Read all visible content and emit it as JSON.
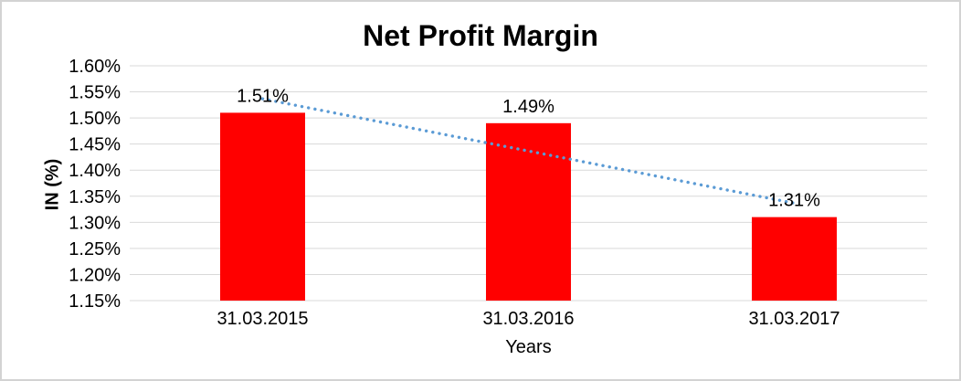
{
  "frame": {
    "background": "#ffffff",
    "border_color": "#d3d3d3"
  },
  "chart_data": {
    "type": "bar",
    "title": "Net Profit Margin",
    "xlabel": "Years",
    "ylabel": "IN (%)",
    "categories": [
      "31.03.2015",
      "31.03.2016",
      "31.03.2017"
    ],
    "values": [
      1.51,
      1.49,
      1.31
    ],
    "data_labels": [
      "1.51%",
      "1.49%",
      "1.31%"
    ],
    "ylim": [
      1.15,
      1.6
    ],
    "ytick_step": 0.05,
    "ytick_labels": [
      "1.60%",
      "1.55%",
      "1.50%",
      "1.45%",
      "1.40%",
      "1.35%",
      "1.30%",
      "1.25%",
      "1.20%",
      "1.15%"
    ],
    "grid": true,
    "legend_position": "none",
    "bar_color": "#ff0000",
    "gridline_color": "#d9d9d9",
    "text_color": "#000000",
    "trendline": {
      "type": "linear",
      "style": "dotted",
      "color": "#5b9bd5",
      "values": [
        1.5367,
        1.4367,
        1.3367
      ]
    }
  }
}
